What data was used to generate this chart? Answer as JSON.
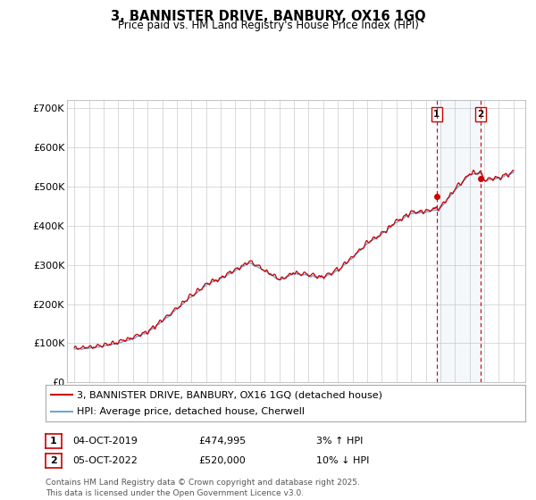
{
  "title": "3, BANNISTER DRIVE, BANBURY, OX16 1GQ",
  "subtitle": "Price paid vs. HM Land Registry's House Price Index (HPI)",
  "ylim": [
    0,
    720000
  ],
  "yticks": [
    0,
    100000,
    200000,
    300000,
    400000,
    500000,
    600000,
    700000
  ],
  "ytick_labels": [
    "£0",
    "£100K",
    "£200K",
    "£300K",
    "£400K",
    "£500K",
    "£600K",
    "£700K"
  ],
  "hpi_color": "#6fa8d4",
  "price_color": "#cc0000",
  "marker1_date_x": 2019.75,
  "marker1_price": 474995,
  "marker2_date_x": 2022.75,
  "marker2_price": 520000,
  "legend_line1": "3, BANNISTER DRIVE, BANBURY, OX16 1GQ (detached house)",
  "legend_line2": "HPI: Average price, detached house, Cherwell",
  "row1_label": "1",
  "row1_date": "04-OCT-2019",
  "row1_price": "£474,995",
  "row1_pct": "3% ↑ HPI",
  "row2_label": "2",
  "row2_date": "05-OCT-2022",
  "row2_price": "£520,000",
  "row2_pct": "10% ↓ HPI",
  "footnote": "Contains HM Land Registry data © Crown copyright and database right 2025.\nThis data is licensed under the Open Government Licence v3.0.",
  "background_color": "#ffffff",
  "grid_color": "#cccccc",
  "xlim_left": 1994.5,
  "xlim_right": 2025.8
}
